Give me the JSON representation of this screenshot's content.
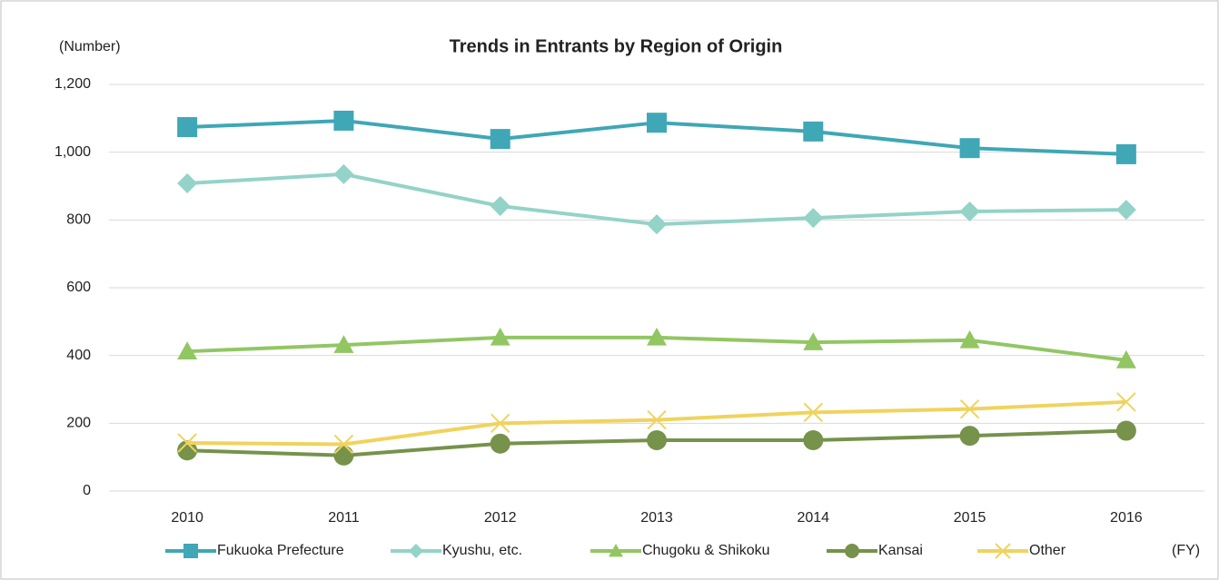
{
  "chart_data": {
    "type": "line",
    "title": "Trends in Entrants by Region of Origin",
    "y_label": "(Number)",
    "x_label": "(FY)",
    "categories": [
      "2010",
      "2011",
      "2012",
      "2013",
      "2014",
      "2015",
      "2016"
    ],
    "series": [
      {
        "name": "Fukuoka Prefecture",
        "color": "#3fa7b6",
        "marker": "square",
        "values": [
          1074,
          1093,
          1039,
          1087,
          1061,
          1012,
          994
        ]
      },
      {
        "name": "Kyushu, etc.",
        "color": "#93d3c8",
        "marker": "diamond",
        "values": [
          908,
          935,
          841,
          787,
          806,
          825,
          830
        ]
      },
      {
        "name": "Chugoku & Shikoku",
        "color": "#92c663",
        "marker": "triangle",
        "values": [
          412,
          431,
          453,
          453,
          439,
          445,
          386
        ]
      },
      {
        "name": "Kansai",
        "color": "#76924b",
        "marker": "circle",
        "values": [
          120,
          105,
          140,
          150,
          150,
          163,
          178
        ]
      },
      {
        "name": "Other",
        "color": "#f0d35e",
        "marker": "x",
        "values": [
          142,
          138,
          200,
          210,
          232,
          242,
          263
        ]
      }
    ],
    "ylim": [
      0,
      1200
    ],
    "yticks": [
      0,
      200,
      400,
      600,
      800,
      {
        "value": 1000,
        "label": "1,000"
      },
      {
        "value": 1200,
        "label": "1,200"
      }
    ],
    "grid": true,
    "legend": "bottom"
  }
}
